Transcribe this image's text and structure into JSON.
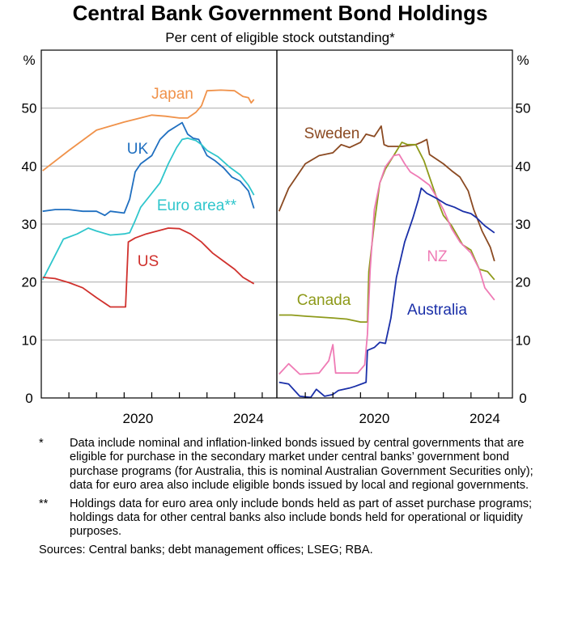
{
  "chart_data": {
    "type": "line",
    "title": "Central Bank Government Bond Holdings",
    "subtitle": "Per cent of eligible stock outstanding*",
    "ylabel_left": "%",
    "ylabel_right": "%",
    "ylim": [
      0,
      60
    ],
    "yticks": [
      0,
      10,
      20,
      30,
      40,
      50
    ],
    "xlim": [
      2017,
      2025.5
    ],
    "xtick_labels": [
      "2020",
      "2024"
    ],
    "grid": true,
    "panels": [
      {
        "series": [
          {
            "name": "Japan",
            "color": "#f0924a",
            "points": [
              [
                2017.05,
                39.2
              ],
              [
                2018,
                42.7
              ],
              [
                2019,
                46.2
              ],
              [
                2019.5,
                46.9
              ],
              [
                2020,
                47.6
              ],
              [
                2020.5,
                48.2
              ],
              [
                2021,
                48.8
              ],
              [
                2021.5,
                48.6
              ],
              [
                2022,
                48.3
              ],
              [
                2022.3,
                48.3
              ],
              [
                2022.6,
                49.3
              ],
              [
                2022.8,
                50.4
              ],
              [
                2023,
                53
              ],
              [
                2023.5,
                53.1
              ],
              [
                2024,
                53
              ],
              [
                2024.3,
                52
              ],
              [
                2024.5,
                51.8
              ],
              [
                2024.6,
                50.9
              ],
              [
                2024.7,
                51.5
              ]
            ]
          },
          {
            "name": "UK",
            "color": "#1f6fc0",
            "points": [
              [
                2017.05,
                32.2
              ],
              [
                2017.5,
                32.5
              ],
              [
                2018,
                32.5
              ],
              [
                2018.5,
                32.2
              ],
              [
                2019,
                32.2
              ],
              [
                2019.3,
                31.5
              ],
              [
                2019.5,
                32.2
              ],
              [
                2020,
                31.9
              ],
              [
                2020.2,
                34.3
              ],
              [
                2020.4,
                39
              ],
              [
                2020.6,
                40.4
              ],
              [
                2021,
                41.8
              ],
              [
                2021.3,
                44.6
              ],
              [
                2021.6,
                46
              ],
              [
                2021.9,
                46.9
              ],
              [
                2022.1,
                47.5
              ],
              [
                2022.3,
                45.5
              ],
              [
                2022.5,
                44.8
              ],
              [
                2022.7,
                44.6
              ],
              [
                2023,
                41.8
              ],
              [
                2023.3,
                40.9
              ],
              [
                2023.6,
                39.7
              ],
              [
                2023.9,
                38.1
              ],
              [
                2024.2,
                37.4
              ],
              [
                2024.5,
                35.7
              ],
              [
                2024.7,
                32.7
              ]
            ]
          },
          {
            "name": "Euro area**",
            "color": "#2fc6cc",
            "points": [
              [
                2017.05,
                20.4
              ],
              [
                2017.5,
                24.6
              ],
              [
                2017.8,
                27.4
              ],
              [
                2018.3,
                28.3
              ],
              [
                2018.7,
                29.3
              ],
              [
                2019,
                28.8
              ],
              [
                2019.5,
                28.1
              ],
              [
                2020,
                28.3
              ],
              [
                2020.2,
                28.5
              ],
              [
                2020.4,
                30.6
              ],
              [
                2020.6,
                32.9
              ],
              [
                2021,
                35.3
              ],
              [
                2021.3,
                37.1
              ],
              [
                2021.6,
                40.4
              ],
              [
                2021.9,
                43.2
              ],
              [
                2022.1,
                44.6
              ],
              [
                2022.3,
                44.8
              ],
              [
                2022.6,
                44.4
              ],
              [
                2022.8,
                43.7
              ],
              [
                2023,
                42.7
              ],
              [
                2023.4,
                41.6
              ],
              [
                2023.8,
                39.9
              ],
              [
                2024.2,
                38.5
              ],
              [
                2024.5,
                36.7
              ],
              [
                2024.7,
                35
              ]
            ]
          },
          {
            "name": "US",
            "color": "#d0312d",
            "points": [
              [
                2017.05,
                20.8
              ],
              [
                2017.5,
                20.6
              ],
              [
                2018,
                19.9
              ],
              [
                2018.5,
                19
              ],
              [
                2019,
                17.3
              ],
              [
                2019.5,
                15.7
              ],
              [
                2020,
                15.7
              ],
              [
                2020.05,
                15.7
              ],
              [
                2020.15,
                26.9
              ],
              [
                2020.4,
                27.6
              ],
              [
                2020.8,
                28.3
              ],
              [
                2021.2,
                28.8
              ],
              [
                2021.6,
                29.3
              ],
              [
                2022,
                29.2
              ],
              [
                2022.4,
                28.3
              ],
              [
                2022.8,
                26.9
              ],
              [
                2023.2,
                25
              ],
              [
                2023.6,
                23.6
              ],
              [
                2024,
                22.2
              ],
              [
                2024.3,
                20.8
              ],
              [
                2024.7,
                19.7
              ]
            ]
          }
        ]
      },
      {
        "series": [
          {
            "name": "Sweden",
            "color": "#8b4a22",
            "points": [
              [
                2017.05,
                32.2
              ],
              [
                2017.4,
                36.2
              ],
              [
                2018,
                40.4
              ],
              [
                2018.5,
                41.8
              ],
              [
                2019,
                42.3
              ],
              [
                2019.3,
                43.7
              ],
              [
                2019.6,
                43.2
              ],
              [
                2020,
                44.1
              ],
              [
                2020.2,
                45.5
              ],
              [
                2020.5,
                45.1
              ],
              [
                2020.75,
                46.9
              ],
              [
                2020.85,
                43.7
              ],
              [
                2021,
                43.4
              ],
              [
                2021.5,
                43.4
              ],
              [
                2022,
                43.7
              ],
              [
                2022.2,
                44.1
              ],
              [
                2022.4,
                44.6
              ],
              [
                2022.5,
                42
              ],
              [
                2023,
                40.4
              ],
              [
                2023.3,
                39.2
              ],
              [
                2023.6,
                38.1
              ],
              [
                2023.9,
                35.7
              ],
              [
                2024.1,
                32.5
              ],
              [
                2024.4,
                28.8
              ],
              [
                2024.7,
                26
              ],
              [
                2024.85,
                23.6
              ]
            ]
          },
          {
            "name": "Canada",
            "color": "#8e9a1a",
            "points": [
              [
                2017.05,
                14.3
              ],
              [
                2017.5,
                14.3
              ],
              [
                2018,
                14.1
              ],
              [
                2019,
                13.8
              ],
              [
                2019.5,
                13.6
              ],
              [
                2020,
                13.1
              ],
              [
                2020.25,
                13.1
              ],
              [
                2020.3,
                21.8
              ],
              [
                2020.5,
                30.1
              ],
              [
                2020.7,
                37.1
              ],
              [
                2020.9,
                39.5
              ],
              [
                2021.2,
                41.8
              ],
              [
                2021.5,
                44.1
              ],
              [
                2021.7,
                43.7
              ],
              [
                2022,
                43.7
              ],
              [
                2022.3,
                40.9
              ],
              [
                2022.5,
                38.1
              ],
              [
                2022.8,
                33.9
              ],
              [
                2023,
                31.5
              ],
              [
                2023.3,
                29.7
              ],
              [
                2023.7,
                26.4
              ],
              [
                2024,
                25.5
              ],
              [
                2024.3,
                22.2
              ],
              [
                2024.6,
                21.8
              ],
              [
                2024.85,
                20.4
              ]
            ]
          },
          {
            "name": "NZ",
            "color": "#ef7bb5",
            "points": [
              [
                2017.05,
                4.1
              ],
              [
                2017.4,
                5.9
              ],
              [
                2017.8,
                4.1
              ],
              [
                2018.5,
                4.3
              ],
              [
                2018.85,
                6.4
              ],
              [
                2019,
                9.2
              ],
              [
                2019.1,
                4.3
              ],
              [
                2019.9,
                4.3
              ],
              [
                2020.15,
                5.7
              ],
              [
                2020.25,
                11
              ],
              [
                2020.35,
                22.2
              ],
              [
                2020.5,
                32.5
              ],
              [
                2020.7,
                37.1
              ],
              [
                2020.9,
                39.9
              ],
              [
                2021.2,
                41.8
              ],
              [
                2021.4,
                42
              ],
              [
                2021.6,
                40.4
              ],
              [
                2021.8,
                39
              ],
              [
                2022.1,
                38.1
              ],
              [
                2022.5,
                36.7
              ],
              [
                2022.8,
                34.3
              ],
              [
                2023,
                32.5
              ],
              [
                2023.3,
                29.2
              ],
              [
                2023.6,
                26.9
              ],
              [
                2024,
                25
              ],
              [
                2024.3,
                22.2
              ],
              [
                2024.5,
                19
              ],
              [
                2024.85,
                16.9
              ]
            ]
          },
          {
            "name": "Australia",
            "color": "#1a2fa8",
            "points": [
              [
                2017.05,
                2.7
              ],
              [
                2017.4,
                2.4
              ],
              [
                2017.8,
                0.3
              ],
              [
                2018.2,
                0.1
              ],
              [
                2018.4,
                1.5
              ],
              [
                2018.7,
                0.3
              ],
              [
                2019,
                0.6
              ],
              [
                2019.2,
                1.3
              ],
              [
                2019.6,
                1.7
              ],
              [
                2019.8,
                2
              ],
              [
                2020.2,
                2.7
              ],
              [
                2020.25,
                8.2
              ],
              [
                2020.5,
                8.7
              ],
              [
                2020.7,
                9.6
              ],
              [
                2020.9,
                9.4
              ],
              [
                2021.1,
                13.8
              ],
              [
                2021.3,
                20.8
              ],
              [
                2021.6,
                26.9
              ],
              [
                2021.9,
                31.1
              ],
              [
                2022.1,
                34.3
              ],
              [
                2022.2,
                36.2
              ],
              [
                2022.4,
                35.3
              ],
              [
                2022.6,
                34.8
              ],
              [
                2022.8,
                34.3
              ],
              [
                2023.1,
                33.4
              ],
              [
                2023.4,
                32.9
              ],
              [
                2023.7,
                32.2
              ],
              [
                2024,
                31.8
              ],
              [
                2024.2,
                31.1
              ],
              [
                2024.5,
                29.7
              ],
              [
                2024.85,
                28.5
              ]
            ]
          }
        ]
      }
    ]
  },
  "notes": [
    {
      "mark": "*",
      "text": "Data include nominal and inflation-linked bonds issued by central governments that are eligible for purchase in the secondary market under central banks’ government bond purchase programs (for Australia, this is nominal Australian Government Securities only); data for euro area also include eligible bonds issued by local and regional governments."
    },
    {
      "mark": "**",
      "text": "Holdings data for euro area only include bonds held as part of asset purchase programs; holdings data for other central banks also include bonds held for operational or liquidity purposes."
    }
  ],
  "sources": "Sources: Central banks; debt management offices; LSEG; RBA."
}
